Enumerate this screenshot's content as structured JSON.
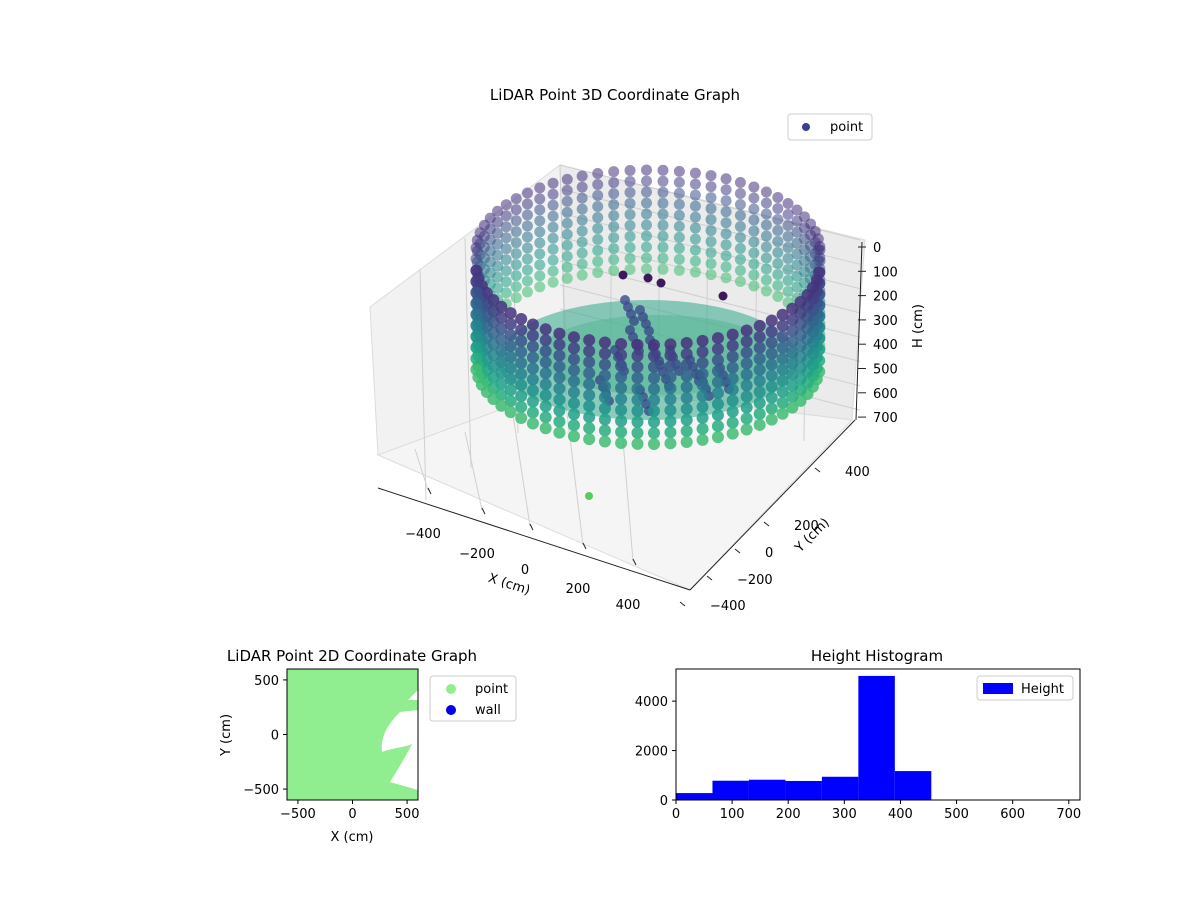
{
  "chart_data": [
    {
      "type": "scatter",
      "title": "LiDAR Point 3D Coordinate Graph",
      "xlabel": "X (cm)",
      "ylabel": "Y (cm)",
      "zlabel": "H (cm)",
      "xticks": [
        "−400",
        "−200",
        "0",
        "200",
        "400"
      ],
      "yticks": [
        "400",
        "200",
        "0",
        "−200",
        "−400"
      ],
      "zticks": [
        "0",
        "100",
        "200",
        "300",
        "400",
        "500",
        "600",
        "700"
      ],
      "xlim": [
        -550,
        550
      ],
      "ylim": [
        -550,
        550
      ],
      "zlim": [
        0,
        700
      ],
      "zaxis_inverted": true,
      "colormap": "viridis",
      "legend": {
        "entries": [
          "point"
        ],
        "placement": "top-right",
        "marker_color": "#3b3f8c"
      },
      "point_cloud": {
        "wall_radius_cm": 480,
        "wall_height_range_cm": [
          0,
          700
        ],
        "floor_height_cm": 650,
        "outlier_point": {
          "x": 350,
          "y": -300,
          "h": 700
        }
      }
    },
    {
      "type": "scatter",
      "title": "LiDAR Point 2D Coordinate Graph",
      "xlabel": "X (cm)",
      "ylabel": "Y (cm)",
      "xticks": [
        "−500",
        "0",
        "500"
      ],
      "yticks": [
        "500",
        "0",
        "−500"
      ],
      "xlim": [
        -600,
        600
      ],
      "ylim": [
        -600,
        600
      ],
      "legend": {
        "placement": "outside-right",
        "entries": [
          {
            "name": "point",
            "color": "#90ee90"
          },
          {
            "name": "wall",
            "color": "#0000ee"
          }
        ]
      }
    },
    {
      "type": "bar",
      "title": "Height Histogram",
      "xticks": [
        "0",
        "100",
        "200",
        "300",
        "400",
        "500",
        "600",
        "700"
      ],
      "yticks": [
        "0",
        "2000",
        "4000"
      ],
      "xlim": [
        0,
        720
      ],
      "ylim": [
        0,
        5300
      ],
      "color": "#0000ff",
      "legend": {
        "entries": [
          "Height"
        ],
        "placement": "top-right"
      },
      "bins": [
        {
          "x0": 0,
          "x1": 65,
          "count": 280
        },
        {
          "x0": 65,
          "x1": 130,
          "count": 780
        },
        {
          "x0": 130,
          "x1": 195,
          "count": 820
        },
        {
          "x0": 195,
          "x1": 260,
          "count": 770
        },
        {
          "x0": 260,
          "x1": 325,
          "count": 940
        },
        {
          "x0": 325,
          "x1": 390,
          "count": 5020
        },
        {
          "x0": 390,
          "x1": 455,
          "count": 1170
        },
        {
          "x0": 455,
          "x1": 520,
          "count": 0
        },
        {
          "x0": 520,
          "x1": 585,
          "count": 0
        },
        {
          "x0": 585,
          "x1": 650,
          "count": 0
        },
        {
          "x0": 650,
          "x1": 715,
          "count": 0
        }
      ]
    }
  ]
}
